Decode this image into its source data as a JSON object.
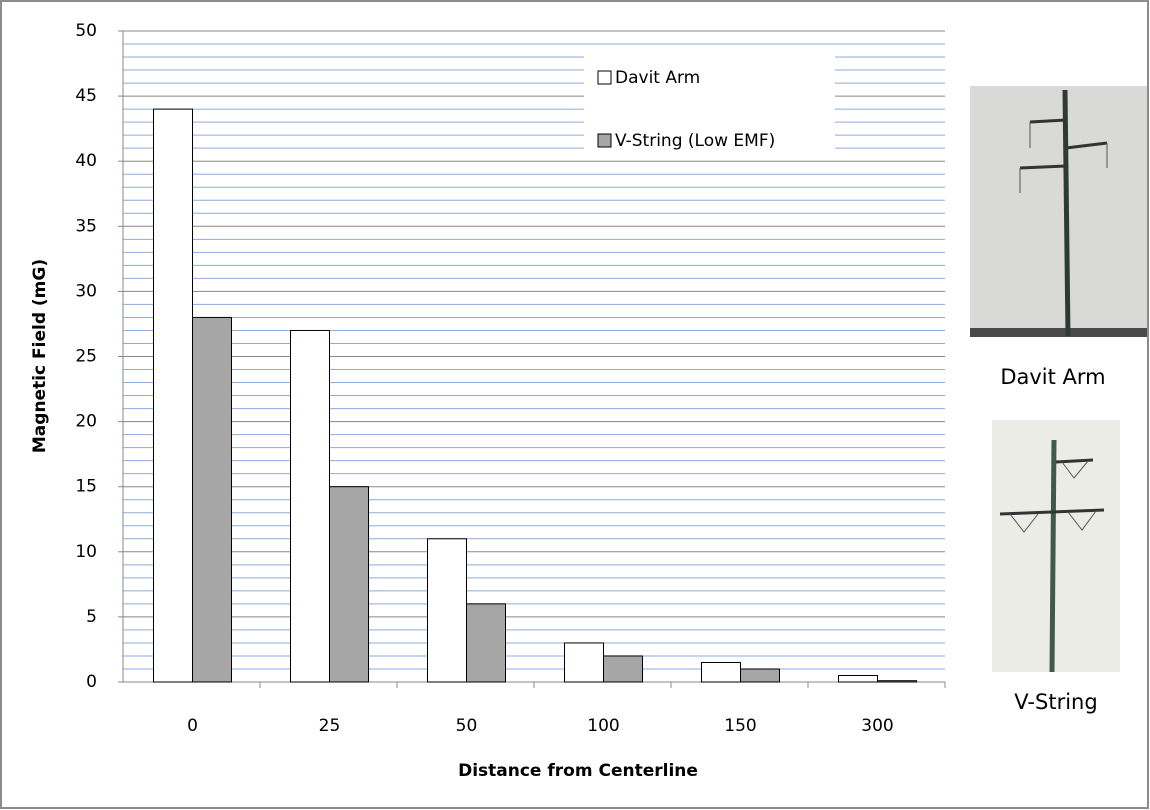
{
  "chart_data": {
    "type": "bar",
    "x_label": "Distance from Centerline",
    "y_label": "Magnetic Field (mG)",
    "categories": [
      "0",
      "25",
      "50",
      "100",
      "150",
      "300"
    ],
    "series": [
      {
        "name": "Davit Arm",
        "color": "#ffffff",
        "values": [
          44,
          27,
          11,
          3,
          1.5,
          0.5
        ]
      },
      {
        "name": "V-String (Low EMF)",
        "color": "#a6a6a6",
        "values": [
          28,
          15,
          6,
          2,
          1,
          0.1
        ]
      }
    ],
    "ylim": [
      0,
      50
    ],
    "yticks": [
      0,
      5,
      10,
      15,
      20,
      25,
      30,
      35,
      40,
      45,
      50
    ],
    "grid": true,
    "minor_grid": true,
    "legend": "top-right",
    "annotations": [
      "Davit Arm",
      "V-String"
    ]
  }
}
